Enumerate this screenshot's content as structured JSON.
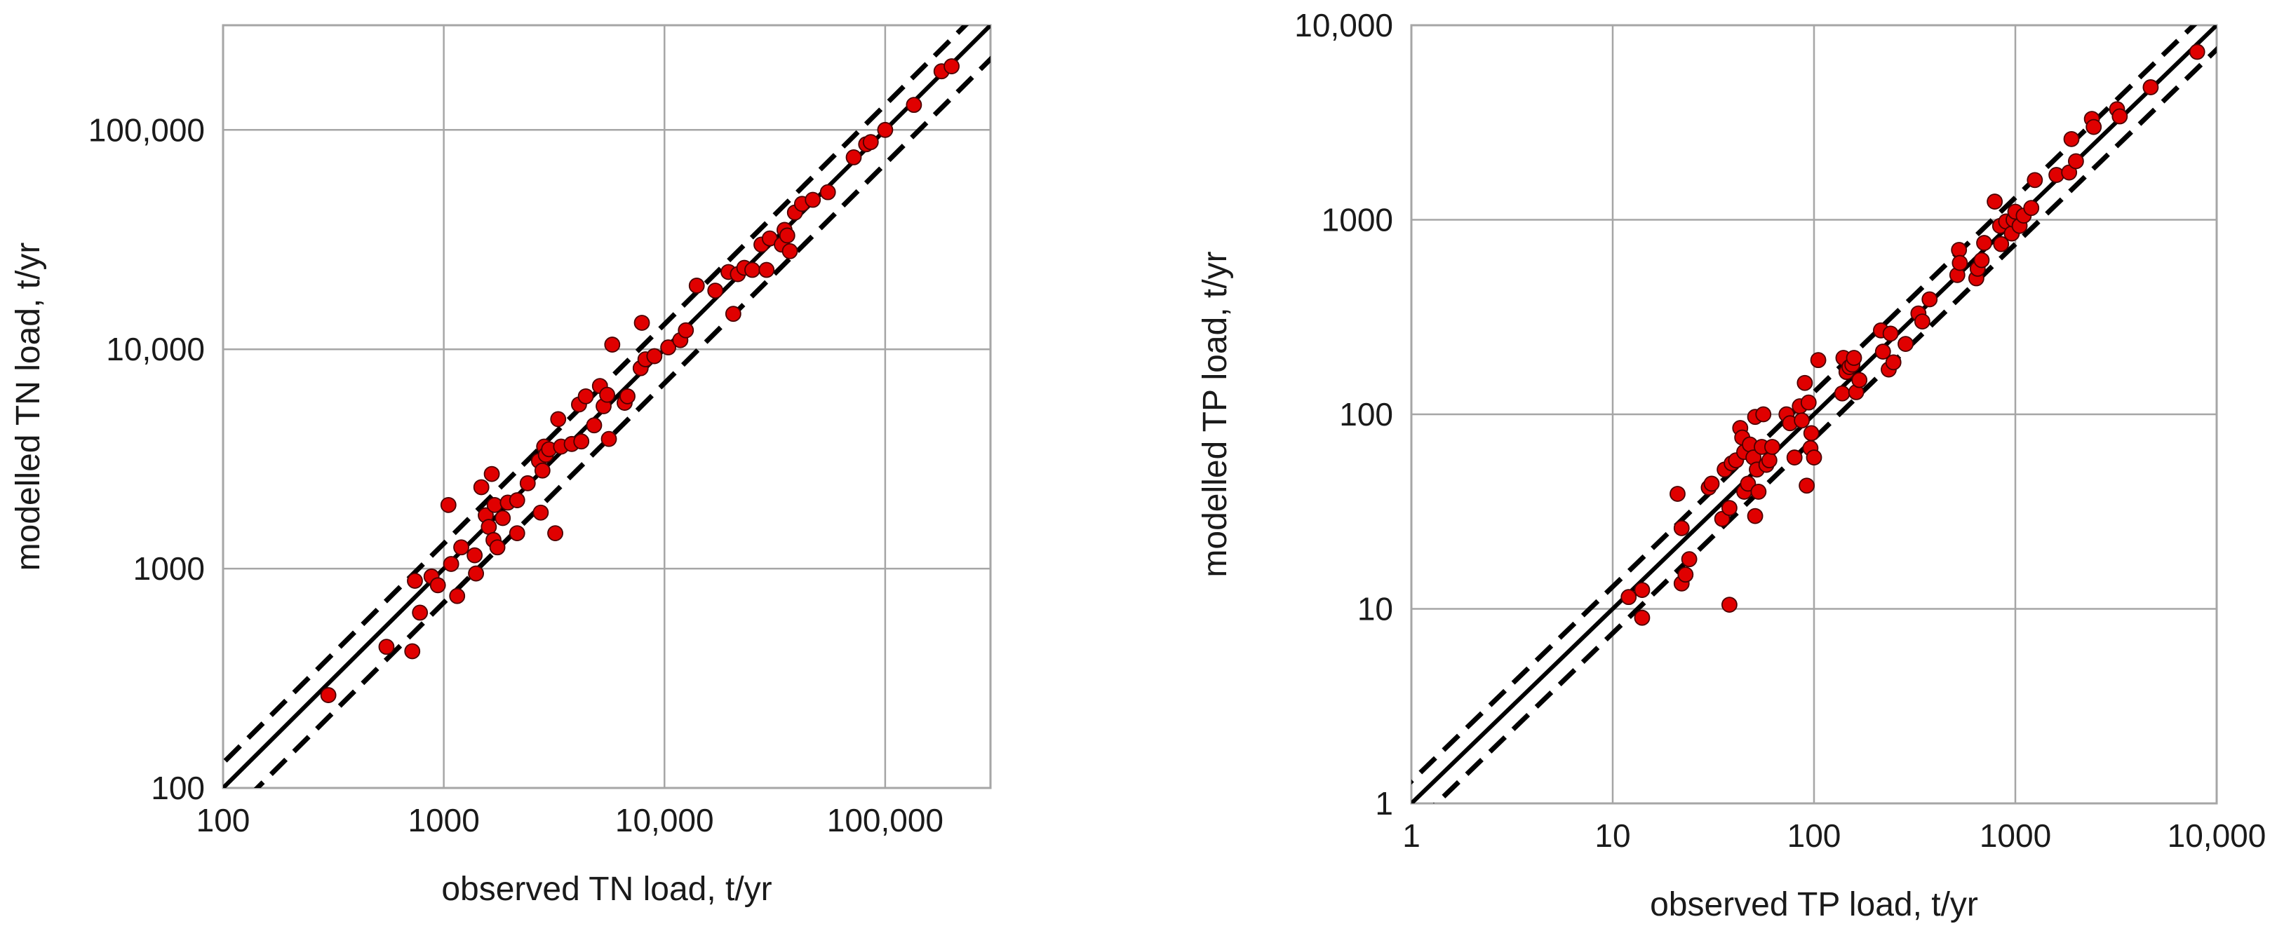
{
  "chart_data": [
    {
      "type": "scatter",
      "title": "",
      "xlabel": "observed TN load, t/yr",
      "ylabel": "modelled TN load, t/yr",
      "xscale": "log",
      "yscale": "log",
      "xlim": [
        100,
        300000
      ],
      "ylim": [
        100,
        300000
      ],
      "xticks": [
        100,
        1000,
        10000,
        100000
      ],
      "yticks": [
        100,
        1000,
        10000,
        100000
      ],
      "xtick_labels": [
        "100",
        "1000",
        "10,000",
        "100,000"
      ],
      "ytick_labels": [
        "100",
        "1000",
        "10,000",
        "100,000"
      ],
      "grid": true,
      "legend": "none",
      "marker_color": "#e00000",
      "marker_edge_color": "#4a0000",
      "reference_lines": [
        {
          "kind": "1:1",
          "factor": 1,
          "style": "solid",
          "color": "#000000"
        },
        {
          "kind": "upper bound",
          "factor": 1.3,
          "style": "dashed",
          "color": "#000000"
        },
        {
          "kind": "lower bound",
          "factor": 0.7,
          "style": "dashed",
          "color": "#000000"
        }
      ],
      "points": [
        [
          300,
          265
        ],
        [
          550,
          440
        ],
        [
          720,
          420
        ],
        [
          740,
          880
        ],
        [
          780,
          630
        ],
        [
          880,
          920
        ],
        [
          940,
          840
        ],
        [
          1050,
          1950
        ],
        [
          1080,
          1050
        ],
        [
          1150,
          750
        ],
        [
          1200,
          1250
        ],
        [
          1380,
          1150
        ],
        [
          1400,
          950
        ],
        [
          1480,
          2350
        ],
        [
          1550,
          1750
        ],
        [
          1600,
          1550
        ],
        [
          1650,
          2700
        ],
        [
          1680,
          1350
        ],
        [
          1700,
          1950
        ],
        [
          1750,
          1250
        ],
        [
          1850,
          1700
        ],
        [
          1950,
          2000
        ],
        [
          2150,
          1450
        ],
        [
          2150,
          2050
        ],
        [
          2400,
          2450
        ],
        [
          2700,
          3100
        ],
        [
          2750,
          1800
        ],
        [
          2800,
          2800
        ],
        [
          2850,
          3600
        ],
        [
          2900,
          3300
        ],
        [
          3000,
          3500
        ],
        [
          3200,
          1450
        ],
        [
          3300,
          4800
        ],
        [
          3400,
          3600
        ],
        [
          3800,
          3700
        ],
        [
          4100,
          5600
        ],
        [
          4200,
          3800
        ],
        [
          4400,
          6100
        ],
        [
          4800,
          4500
        ],
        [
          5100,
          6800
        ],
        [
          5300,
          5500
        ],
        [
          5500,
          6200
        ],
        [
          5600,
          3900
        ],
        [
          5800,
          10500
        ],
        [
          6600,
          5700
        ],
        [
          6800,
          6100
        ],
        [
          7800,
          8200
        ],
        [
          7900,
          13200
        ],
        [
          8200,
          9000
        ],
        [
          9000,
          9300
        ],
        [
          10400,
          10200
        ],
        [
          11800,
          11000
        ],
        [
          12500,
          12200
        ],
        [
          14000,
          19500
        ],
        [
          17000,
          18500
        ],
        [
          19500,
          22500
        ],
        [
          20500,
          14500
        ],
        [
          21500,
          22000
        ],
        [
          23000,
          23500
        ],
        [
          25000,
          23000
        ],
        [
          27500,
          30000
        ],
        [
          29000,
          23000
        ],
        [
          30000,
          32000
        ],
        [
          34000,
          30000
        ],
        [
          35000,
          35000
        ],
        [
          36000,
          33000
        ],
        [
          37000,
          28000
        ],
        [
          39000,
          42000
        ],
        [
          42000,
          46000
        ],
        [
          47000,
          48000
        ],
        [
          55000,
          52000
        ],
        [
          72000,
          75000
        ],
        [
          82000,
          86000
        ],
        [
          86000,
          88000
        ],
        [
          100000,
          100000
        ],
        [
          135000,
          130000
        ],
        [
          180000,
          185000
        ],
        [
          200000,
          195000
        ]
      ]
    },
    {
      "type": "scatter",
      "title": "",
      "xlabel": "observed TP load, t/yr",
      "ylabel": "modelled TP load, t/yr",
      "xscale": "log",
      "yscale": "log",
      "xlim": [
        1,
        10000
      ],
      "ylim": [
        1,
        10000
      ],
      "xticks": [
        1,
        10,
        100,
        1000,
        10000
      ],
      "yticks": [
        1,
        10,
        100,
        1000,
        10000
      ],
      "xtick_labels": [
        "1",
        "10",
        "100",
        "1000",
        "10,000"
      ],
      "ytick_labels": [
        "1",
        "10",
        "100",
        "1000",
        "10,000"
      ],
      "grid": true,
      "legend": "none",
      "marker_color": "#e00000",
      "marker_edge_color": "#4a0000",
      "reference_lines": [
        {
          "kind": "1:1",
          "factor": 1,
          "style": "solid",
          "color": "#000000"
        },
        {
          "kind": "upper bound",
          "factor": 1.3,
          "style": "dashed",
          "color": "#000000"
        },
        {
          "kind": "lower bound",
          "factor": 0.75,
          "style": "dashed",
          "color": "#000000"
        }
      ],
      "points": [
        [
          12,
          11.5
        ],
        [
          14,
          9
        ],
        [
          14,
          12.5
        ],
        [
          21,
          39
        ],
        [
          22,
          13.5
        ],
        [
          22,
          26
        ],
        [
          23,
          15
        ],
        [
          24,
          18
        ],
        [
          30,
          42
        ],
        [
          31,
          44
        ],
        [
          35,
          29
        ],
        [
          36,
          52
        ],
        [
          38,
          10.5
        ],
        [
          38,
          33
        ],
        [
          39,
          56
        ],
        [
          41,
          58
        ],
        [
          43,
          85
        ],
        [
          44,
          76
        ],
        [
          45,
          64
        ],
        [
          45,
          40
        ],
        [
          47,
          44
        ],
        [
          48,
          70
        ],
        [
          50,
          60
        ],
        [
          51,
          30
        ],
        [
          51,
          97
        ],
        [
          52,
          52
        ],
        [
          53,
          40
        ],
        [
          55,
          68
        ],
        [
          56,
          100
        ],
        [
          58,
          55
        ],
        [
          60,
          58
        ],
        [
          62,
          68
        ],
        [
          73,
          100
        ],
        [
          76,
          90
        ],
        [
          80,
          60
        ],
        [
          85,
          110
        ],
        [
          87,
          93
        ],
        [
          90,
          145
        ],
        [
          92,
          43
        ],
        [
          94,
          115
        ],
        [
          96,
          67
        ],
        [
          97,
          80
        ],
        [
          100,
          60
        ],
        [
          105,
          190
        ],
        [
          138,
          128
        ],
        [
          140,
          195
        ],
        [
          145,
          165
        ],
        [
          150,
          175
        ],
        [
          155,
          180
        ],
        [
          158,
          195
        ],
        [
          162,
          130
        ],
        [
          168,
          150
        ],
        [
          215,
          270
        ],
        [
          220,
          210
        ],
        [
          235,
          170
        ],
        [
          240,
          260
        ],
        [
          248,
          185
        ],
        [
          285,
          230
        ],
        [
          330,
          330
        ],
        [
          345,
          300
        ],
        [
          375,
          390
        ],
        [
          515,
          520
        ],
        [
          525,
          700
        ],
        [
          530,
          600
        ],
        [
          640,
          500
        ],
        [
          650,
          560
        ],
        [
          680,
          620
        ],
        [
          700,
          760
        ],
        [
          790,
          1240
        ],
        [
          840,
          930
        ],
        [
          850,
          750
        ],
        [
          900,
          980
        ],
        [
          960,
          850
        ],
        [
          980,
          1000
        ],
        [
          1000,
          1100
        ],
        [
          1050,
          930
        ],
        [
          1100,
          1050
        ],
        [
          1200,
          1150
        ],
        [
          1250,
          1600
        ],
        [
          1600,
          1700
        ],
        [
          1850,
          1750
        ],
        [
          1900,
          2600
        ],
        [
          2000,
          2000
        ],
        [
          2400,
          3300
        ],
        [
          2450,
          3000
        ],
        [
          3200,
          3700
        ],
        [
          3300,
          3400
        ],
        [
          4700,
          4800
        ],
        [
          8000,
          7300
        ]
      ]
    }
  ]
}
